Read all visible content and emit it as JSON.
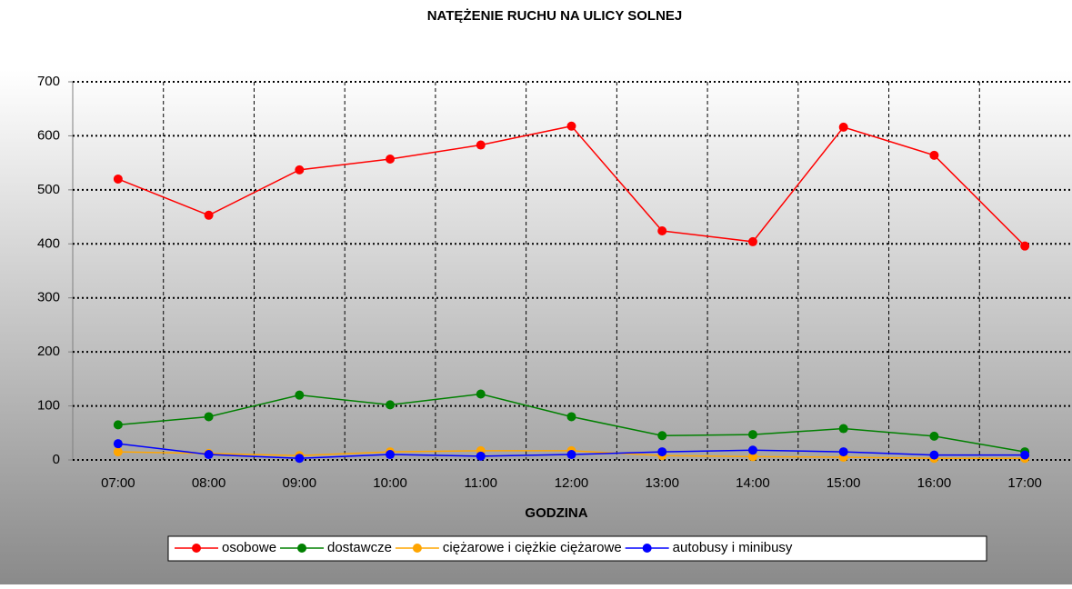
{
  "chart_data": {
    "type": "line",
    "title": "NATĘŻENIE RUCHU NA ULICY SOLNEJ",
    "x_label": "GODZINA",
    "categories": [
      "07:00",
      "08:00",
      "09:00",
      "10:00",
      "11:00",
      "12:00",
      "13:00",
      "14:00",
      "15:00",
      "16:00",
      "17:00"
    ],
    "series": [
      {
        "name": "osobowe",
        "color": "#ff0000",
        "values": [
          520,
          453,
          537,
          557,
          583,
          618,
          424,
          404,
          616,
          564,
          396
        ]
      },
      {
        "name": "dostawcze",
        "color": "#008000",
        "values": [
          65,
          80,
          120,
          102,
          122,
          80,
          45,
          47,
          58,
          44,
          15
        ]
      },
      {
        "name": "ciężarowe i ciężkie ciężarowe",
        "color": "#ffa500",
        "values": [
          15,
          12,
          8,
          15,
          17,
          17,
          8,
          6,
          5,
          3,
          3
        ]
      },
      {
        "name": "autobusy i minibusy",
        "color": "#0000ff",
        "values": [
          30,
          10,
          3,
          10,
          7,
          10,
          15,
          18,
          15,
          9,
          9
        ]
      }
    ],
    "ylim": [
      0,
      700
    ],
    "yticks": [
      0,
      100,
      200,
      300,
      400,
      500,
      600,
      700
    ],
    "grid": true,
    "legend": "bottom"
  }
}
